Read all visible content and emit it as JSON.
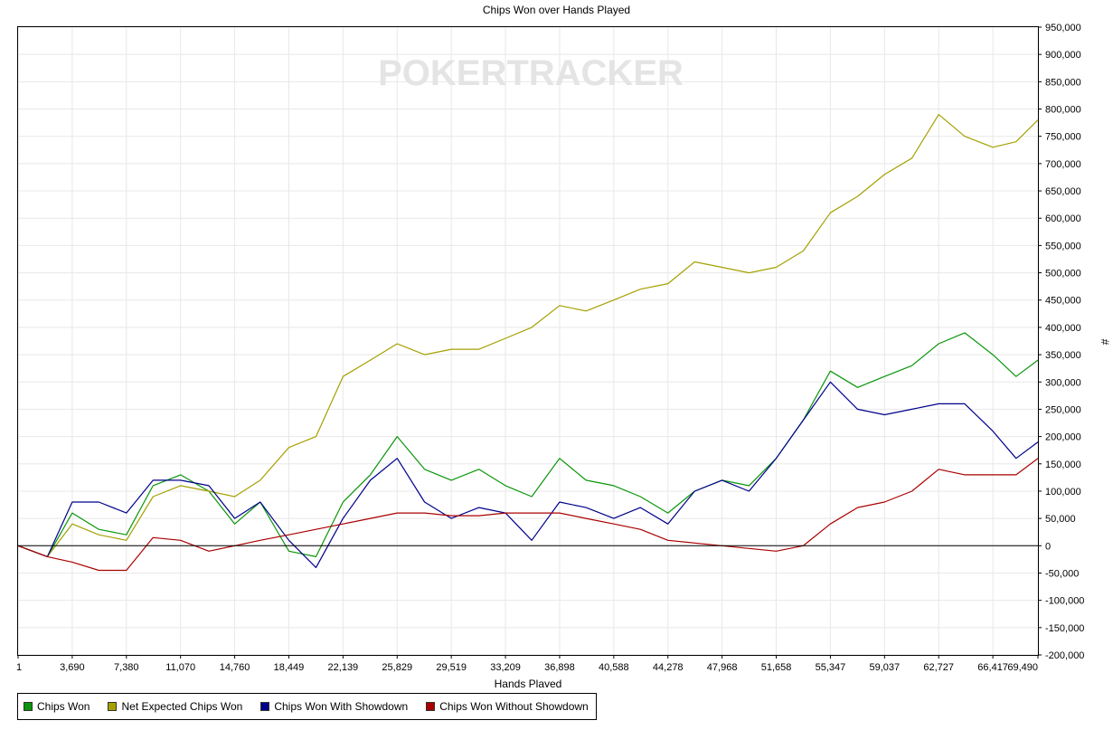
{
  "chart_data": {
    "type": "line",
    "title": "Chips Won over Hands Played",
    "xlabel": "Hands Played",
    "ylabel": "#",
    "watermark": "POKERTRACKER",
    "x_ticks": [
      "1",
      "3,690",
      "7,380",
      "11,070",
      "14,760",
      "18,449",
      "22,139",
      "25,829",
      "29,519",
      "33,209",
      "36,898",
      "40,588",
      "44,278",
      "47,968",
      "51,658",
      "55,347",
      "59,037",
      "62,727",
      "66,417",
      "69,490"
    ],
    "y_ticks": [
      "950,000",
      "900,000",
      "850,000",
      "800,000",
      "750,000",
      "700,000",
      "650,000",
      "600,000",
      "550,000",
      "500,000",
      "450,000",
      "400,000",
      "350,000",
      "300,000",
      "250,000",
      "200,000",
      "150,000",
      "100,000",
      "50,000",
      "0",
      "-50,000",
      "-100,000",
      "-150,000",
      "-200,000"
    ],
    "xlim": [
      1,
      69490
    ],
    "ylim": [
      -200000,
      950000
    ],
    "grid": true,
    "legend_position": "bottom",
    "x": [
      1,
      2000,
      3690,
      5500,
      7380,
      9200,
      11070,
      13000,
      14760,
      16500,
      18449,
      20300,
      22139,
      24000,
      25829,
      27700,
      29519,
      31400,
      33209,
      35000,
      36898,
      38700,
      40588,
      42400,
      44278,
      46100,
      47968,
      49800,
      51658,
      53500,
      55347,
      57200,
      59037,
      60900,
      62727,
      64500,
      66417,
      68000,
      69490
    ],
    "series": [
      {
        "name": "Chips Won",
        "color": "#0a960a",
        "values": [
          0,
          -20000,
          60000,
          30000,
          20000,
          110000,
          130000,
          100000,
          40000,
          80000,
          -10000,
          -20000,
          80000,
          130000,
          200000,
          140000,
          120000,
          140000,
          110000,
          90000,
          160000,
          120000,
          110000,
          90000,
          60000,
          100000,
          120000,
          110000,
          160000,
          230000,
          320000,
          290000,
          310000,
          330000,
          370000,
          390000,
          350000,
          310000,
          340000
        ]
      },
      {
        "name": "Net Expected Chips Won",
        "color": "#a5a000",
        "values": [
          0,
          -20000,
          40000,
          20000,
          10000,
          90000,
          110000,
          100000,
          90000,
          120000,
          180000,
          200000,
          310000,
          340000,
          370000,
          350000,
          360000,
          360000,
          380000,
          400000,
          440000,
          430000,
          450000,
          470000,
          480000,
          520000,
          510000,
          500000,
          510000,
          540000,
          610000,
          640000,
          680000,
          710000,
          790000,
          750000,
          730000,
          740000,
          780000
        ]
      },
      {
        "name": "Chips Won With Showdown",
        "color": "#00008c",
        "values": [
          0,
          -20000,
          80000,
          80000,
          60000,
          120000,
          120000,
          110000,
          50000,
          80000,
          10000,
          -40000,
          50000,
          120000,
          160000,
          80000,
          50000,
          70000,
          60000,
          10000,
          80000,
          70000,
          50000,
          70000,
          40000,
          100000,
          120000,
          100000,
          160000,
          230000,
          300000,
          250000,
          240000,
          250000,
          260000,
          260000,
          210000,
          160000,
          190000
        ]
      },
      {
        "name": "Chips Won Without Showdown",
        "color": "#aa0000",
        "values": [
          0,
          -20000,
          -30000,
          -45000,
          -45000,
          15000,
          10000,
          -10000,
          0,
          10000,
          20000,
          30000,
          40000,
          50000,
          60000,
          60000,
          55000,
          55000,
          60000,
          60000,
          60000,
          50000,
          40000,
          30000,
          10000,
          5000,
          0,
          -5000,
          -10000,
          0,
          40000,
          70000,
          80000,
          100000,
          140000,
          130000,
          130000,
          130000,
          160000
        ]
      }
    ]
  }
}
